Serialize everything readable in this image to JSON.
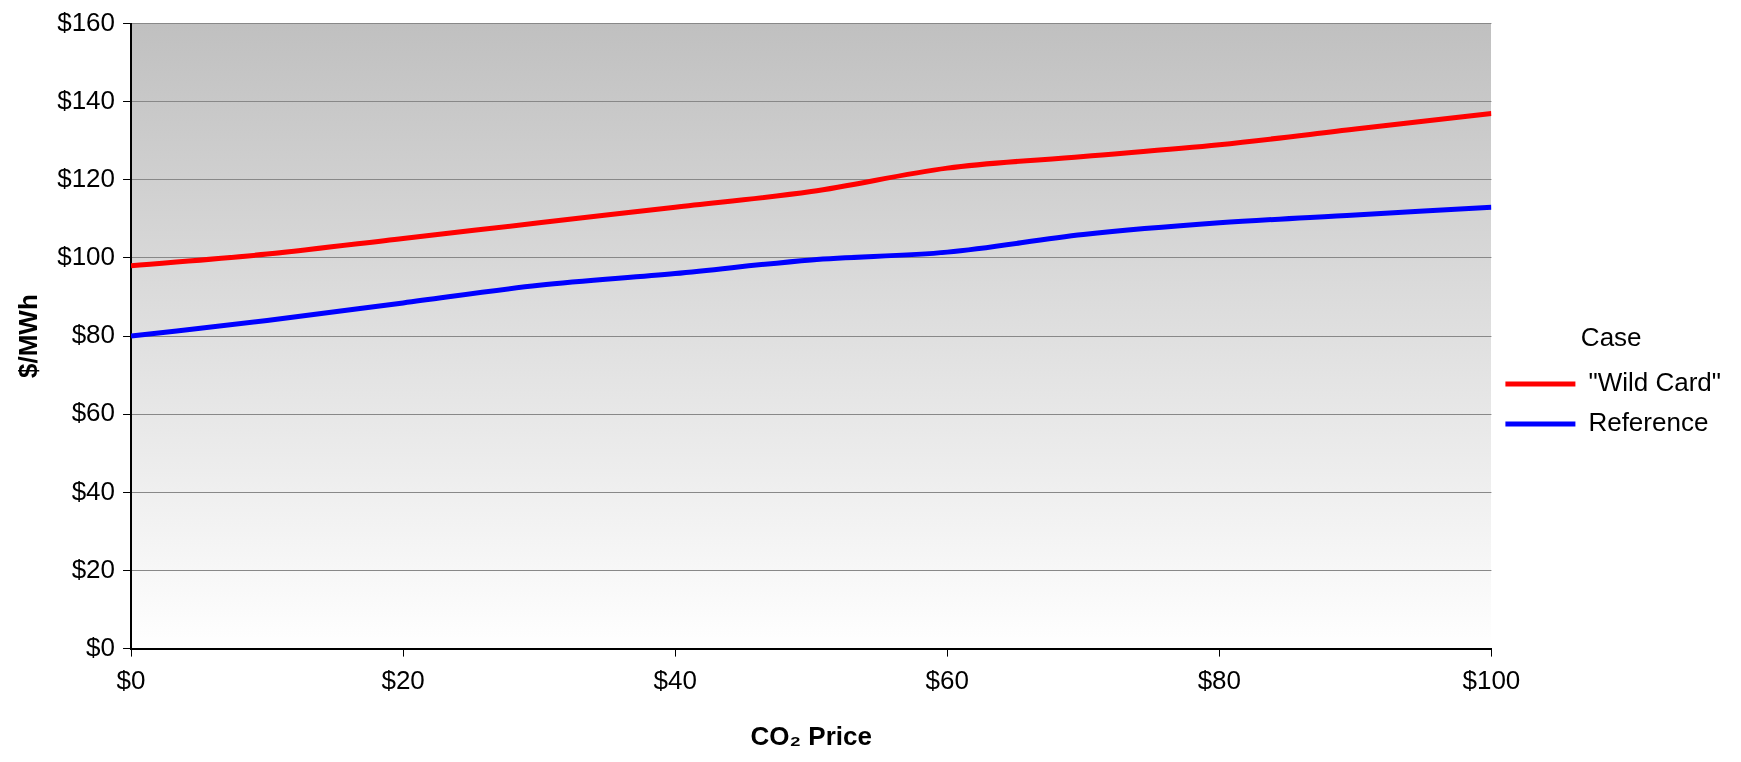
{
  "chart_data": {
    "type": "line",
    "xlabel": "CO₂ Price",
    "ylabel": "$/MWh",
    "legend_title": "Case",
    "legend": "right",
    "grid": "y",
    "marker": "none",
    "line_style": "solid",
    "x": [
      0,
      10,
      20,
      30,
      40,
      50,
      60,
      70,
      80,
      90,
      100
    ],
    "series": [
      {
        "name": "\"Wild Card\"",
        "color": "#ff0000",
        "values": [
          98,
          101,
          105,
          109,
          113,
          117,
          123,
          126,
          129,
          133,
          137
        ]
      },
      {
        "name": "Reference",
        "color": "#0000ff",
        "values": [
          80,
          84,
          88.5,
          93,
          96,
          99.5,
          101.5,
          106,
          109,
          111,
          113
        ]
      }
    ],
    "xlim": [
      0,
      100
    ],
    "xticks": [
      {
        "value": 0,
        "label": "$0"
      },
      {
        "value": 20,
        "label": "$20"
      },
      {
        "value": 40,
        "label": "$40"
      },
      {
        "value": 60,
        "label": "$60"
      },
      {
        "value": 80,
        "label": "$80"
      },
      {
        "value": 100,
        "label": "$100"
      }
    ],
    "ylim": [
      0,
      160
    ],
    "yticks": [
      {
        "value": 0,
        "label": "$0"
      },
      {
        "value": 20,
        "label": "$20"
      },
      {
        "value": 40,
        "label": "$40"
      },
      {
        "value": 60,
        "label": "$60"
      },
      {
        "value": 80,
        "label": "$80"
      },
      {
        "value": 100,
        "label": "$100"
      },
      {
        "value": 120,
        "label": "$120"
      },
      {
        "value": 140,
        "label": "$140"
      },
      {
        "value": 160,
        "label": "$160"
      }
    ]
  }
}
